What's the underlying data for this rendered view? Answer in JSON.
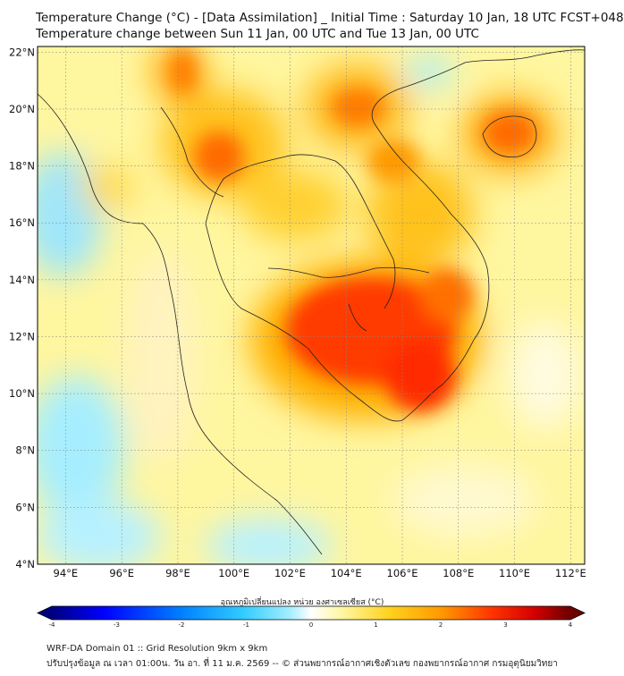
{
  "title_line1": "Temperature Change (°C) - [Data Assimilation] _ Initial Time : Saturday 10 Jan, 18 UTC FCST+048",
  "title_line2": "Temperature change between Sun 11 Jan, 00 UTC and Tue 13 Jan, 00 UTC",
  "lat_labels": [
    "22°N",
    "20°N",
    "18°N",
    "16°N",
    "14°N",
    "12°N",
    "10°N",
    "8°N",
    "6°N",
    "4°N"
  ],
  "lon_labels": [
    "94°E",
    "96°E",
    "98°E",
    "100°E",
    "102°E",
    "104°E",
    "106°E",
    "108°E",
    "110°E",
    "112°E"
  ],
  "map": {
    "lon_range": [
      93,
      112.5
    ],
    "lat_range": [
      4,
      22.2
    ],
    "gridlines": true,
    "colormap": [
      "#00007f",
      "#0000ff",
      "#0080ff",
      "#33ccff",
      "#a6eeff",
      "#ffffff",
      "#fff6a0",
      "#ffd21f",
      "#ff9a00",
      "#ff3300",
      "#d40000",
      "#6e0000"
    ],
    "colorbar_title": "อุณหภูมิเปลี่ยนแปลง หน่วย องศาเซลเซียส (°C)",
    "colorbar_ticks": [
      "-4",
      "-3",
      "-2",
      "-1",
      "0",
      "1",
      "2",
      "3",
      "4"
    ],
    "colorbar_range": [
      -4,
      4
    ]
  },
  "footer_line1": "WRF-DA Domain 01 :: Grid Resolution 9km x 9km",
  "footer_line2": "ปรับปรุงข้อมูล ณ เวลา 01:00น. วัน อา. ที่ 11 ม.ค. 2569 -- © ส่วนพยากรณ์อากาศเชิงตัวเลข กองพยากรณ์อากาศ กรมอุตุนิยมวิทยา"
}
